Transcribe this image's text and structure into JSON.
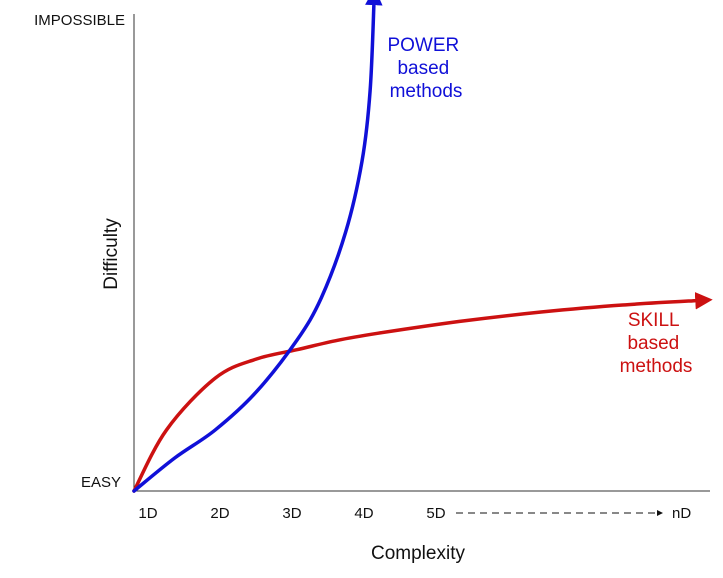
{
  "chart_data": {
    "type": "line",
    "xlabel": "Complexity",
    "ylabel": "Difficulty",
    "x_ticks": [
      "1D",
      "2D",
      "3D",
      "4D",
      "5D",
      "nD"
    ],
    "y_ticks": [
      "EASY",
      "IMPOSSIBLE"
    ],
    "series": [
      {
        "name": "POWER based methods",
        "label_lines": [
          "POWER",
          "based",
          "methods"
        ],
        "color": "#1010d8",
        "points": [
          [
            1.0,
            0.0
          ],
          [
            1.5,
            0.07
          ],
          [
            2.0,
            0.13
          ],
          [
            2.5,
            0.21
          ],
          [
            3.0,
            0.32
          ],
          [
            3.3,
            0.41
          ],
          [
            3.6,
            0.55
          ],
          [
            3.8,
            0.7
          ],
          [
            3.9,
            0.85
          ],
          [
            3.95,
            1.05
          ]
        ]
      },
      {
        "name": "SKILL based methods",
        "label_lines": [
          "SKILL",
          "based",
          "methods"
        ],
        "color": "#cc1111",
        "points": [
          [
            1.0,
            0.0
          ],
          [
            1.4,
            0.13
          ],
          [
            2.0,
            0.24
          ],
          [
            2.5,
            0.28
          ],
          [
            3.0,
            0.3
          ],
          [
            3.5,
            0.32
          ],
          [
            4.0,
            0.335
          ],
          [
            5.0,
            0.36
          ],
          [
            6.0,
            0.38
          ],
          [
            7.0,
            0.395
          ],
          [
            8.0,
            0.405
          ]
        ]
      }
    ],
    "xlim": [
      1,
      8
    ],
    "ylim": [
      0,
      1
    ],
    "grid": false,
    "legend": "inline labels"
  }
}
